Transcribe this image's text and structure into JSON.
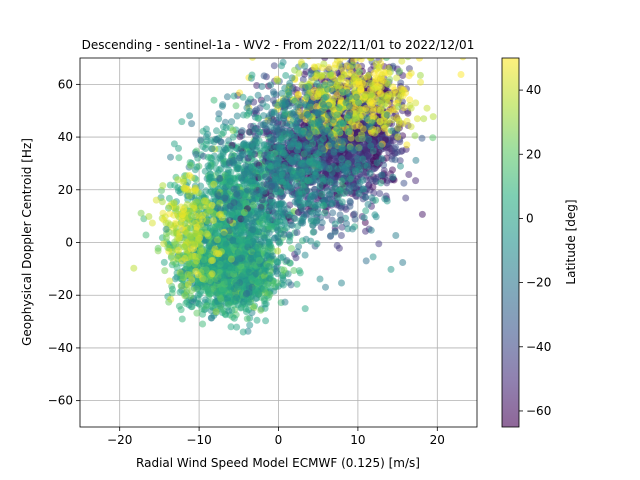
{
  "chart_data": {
    "type": "scatter",
    "title": "Descending - sentinel-1a - WV2 - From 2022/11/01 to 2022/12/01",
    "xlabel": "Radial Wind Speed Model ECMWF (0.125) [m/s]",
    "ylabel": "Geophysical Doppler Centroid [Hz]",
    "xlim": [
      -25,
      25
    ],
    "ylim": [
      -70,
      70
    ],
    "xticks": [
      -20,
      -10,
      0,
      10,
      20
    ],
    "yticks": [
      -60,
      -40,
      -20,
      0,
      20,
      40,
      60
    ],
    "x_tick_labels": [
      "−20",
      "−10",
      "0",
      "10",
      "20"
    ],
    "y_tick_labels": [
      "−60",
      "−40",
      "−20",
      "0",
      "20",
      "40",
      "60"
    ],
    "grid": true,
    "marker_alpha": 0.5,
    "colorbar": {
      "label": "Latitude [deg]",
      "colormap": "viridis",
      "range": [
        -65,
        50
      ],
      "ticks": [
        -60,
        -40,
        -20,
        0,
        20,
        40
      ],
      "tick_labels": [
        "−60",
        "−40",
        "−20",
        "0",
        "20",
        "40"
      ]
    },
    "point_clusters": [
      {
        "x_center": -6,
        "y_center": -10,
        "x_spread": 3,
        "y_spread": 8,
        "latitude": 5,
        "count": 1400
      },
      {
        "x_center": -5,
        "y_center": 15,
        "x_spread": 3.5,
        "y_spread": 13,
        "latitude": 0,
        "count": 900
      },
      {
        "x_center": -11,
        "y_center": 5,
        "x_spread": 2,
        "y_spread": 10,
        "latitude": 35,
        "count": 260
      },
      {
        "x_center": 5,
        "y_center": 35,
        "x_spread": 4,
        "y_spread": 13,
        "latitude": -45,
        "count": 1100
      },
      {
        "x_center": 10,
        "y_center": 45,
        "x_spread": 3,
        "y_spread": 12,
        "latitude": -50,
        "count": 700
      },
      {
        "x_center": 9,
        "y_center": 55,
        "x_spread": 4.5,
        "y_spread": 8,
        "latitude": 45,
        "count": 450
      },
      {
        "x_center": 2,
        "y_center": 30,
        "x_spread": 5,
        "y_spread": 16,
        "latitude": -10,
        "count": 700
      }
    ]
  }
}
